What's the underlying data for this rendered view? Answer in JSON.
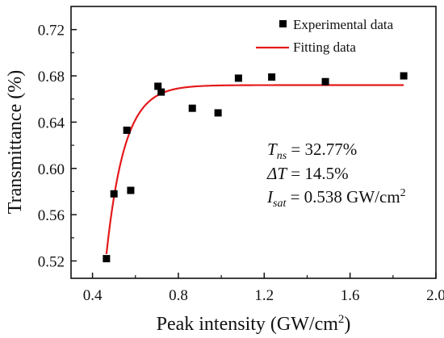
{
  "chart_data": {
    "type": "scatter",
    "xlabel": "Peak intensity (GW/cm",
    "xlabel_sup": "2",
    "xlabel_tail": ")",
    "ylabel": "Transmittance (%)",
    "xlim": [
      0.3,
      2.0
    ],
    "ylim": [
      0.505,
      0.74
    ],
    "x_ticks": [
      "0.4",
      "0.8",
      "1.2",
      "1.6",
      "2.0"
    ],
    "y_ticks": [
      "0.52",
      "0.56",
      "0.60",
      "0.64",
      "0.68",
      "0.72"
    ],
    "x_tick_values": [
      0.4,
      0.8,
      1.2,
      1.6,
      2.0
    ],
    "y_tick_values": [
      0.52,
      0.56,
      0.6,
      0.64,
      0.68,
      0.72
    ],
    "series": [
      {
        "name": "Experimental data",
        "kind": "scatter",
        "marker": "square",
        "color": "#000000",
        "points": [
          [
            0.465,
            0.522
          ],
          [
            0.5,
            0.578
          ],
          [
            0.56,
            0.633
          ],
          [
            0.578,
            0.581
          ],
          [
            0.705,
            0.671
          ],
          [
            0.72,
            0.666
          ],
          [
            0.865,
            0.652
          ],
          [
            0.985,
            0.648
          ],
          [
            1.08,
            0.678
          ],
          [
            1.235,
            0.679
          ],
          [
            1.485,
            0.675
          ],
          [
            1.85,
            0.68
          ]
        ]
      },
      {
        "name": "Fitting data",
        "kind": "line",
        "color": "#e41a1c",
        "x_range": [
          0.465,
          1.85
        ],
        "model": {
          "saturation": 0.672,
          "start": 0.526,
          "x0": 0.465,
          "decay": 0.085
        }
      }
    ],
    "legend_position": "top-right",
    "annotations": {
      "tns_symbol": "T",
      "tns_sub": "ns",
      "tns_value": " = 32.77%",
      "dt_symbol": "ΔT",
      "dt_value": " = 14.5%",
      "isat_symbol": "I",
      "isat_sub": "sat",
      "isat_value": " = 0.538 GW/cm",
      "isat_sup": "2"
    }
  }
}
